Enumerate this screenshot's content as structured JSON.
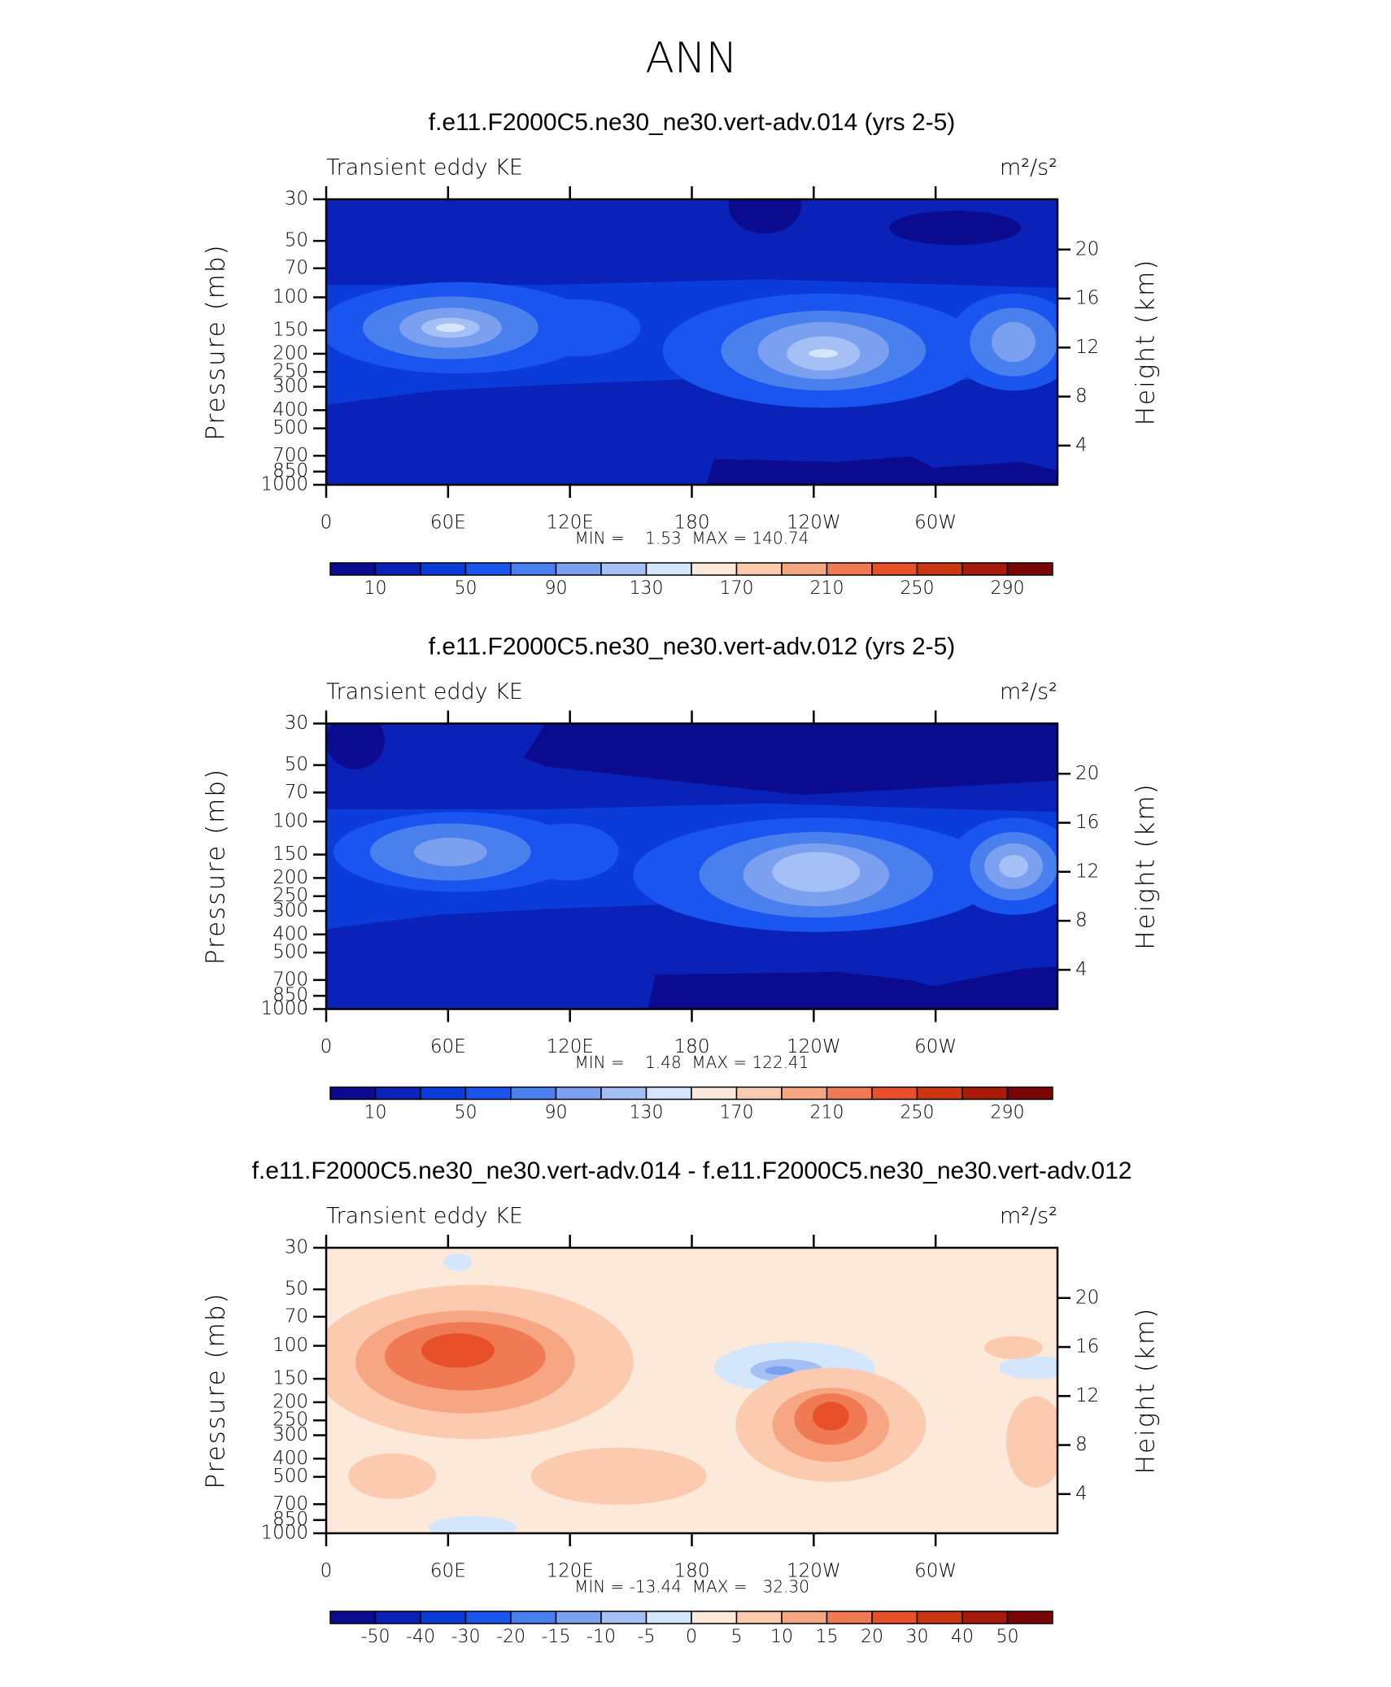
{
  "title": "ANN",
  "chart_data": [
    {
      "type": "contour",
      "title": "f.e11.F2000C5.ne30_ne30.vert-adv.014 (yrs 2-5)",
      "left_label": "Transient eddy KE",
      "units": "m²/s²",
      "ylabel": "Pressure (mb)",
      "y2label": "Height (km)",
      "ylim": [
        1000,
        30
      ],
      "y_log": true,
      "yticks": [
        30,
        50,
        70,
        100,
        150,
        200,
        250,
        300,
        400,
        500,
        700,
        850,
        1000
      ],
      "y2lim": [
        0.8,
        24.1
      ],
      "y2ticks": [
        4,
        8,
        12,
        16,
        20
      ],
      "xlim": [
        0,
        360
      ],
      "xticks": [
        0,
        {
          "value": 60,
          "label": "60E"
        },
        {
          "value": 120,
          "label": "120E"
        },
        180,
        {
          "value": 240,
          "label": "120W"
        },
        {
          "value": 300,
          "label": "60W"
        }
      ],
      "stats": "MIN =    1.53  MAX = 140.74",
      "levels": [
        10,
        30,
        50,
        70,
        90,
        110,
        130,
        150,
        170,
        190,
        210,
        230,
        250,
        270,
        290
      ],
      "colorbar_ticks": [
        10,
        50,
        90,
        130,
        170,
        210,
        250,
        290
      ],
      "colors": [
        "#0b0b8f",
        "#0a22b8",
        "#0b3bd8",
        "#1a55f0",
        "#4a7fee",
        "#7aa0ef",
        "#a4c0f4",
        "#d4e6fb",
        "#fde9d9",
        "#fccaae",
        "#f7a684",
        "#f07a54",
        "#e8502a",
        "#cc3512",
        "#a71a0a",
        "#7a0505"
      ]
    },
    {
      "type": "contour",
      "title": "f.e11.F2000C5.ne30_ne30.vert-adv.012 (yrs 2-5)",
      "left_label": "Transient eddy KE",
      "units": "m²/s²",
      "ylabel": "Pressure (mb)",
      "y2label": "Height (km)",
      "ylim": [
        1000,
        30
      ],
      "y_log": true,
      "yticks": [
        30,
        50,
        70,
        100,
        150,
        200,
        250,
        300,
        400,
        500,
        700,
        850,
        1000
      ],
      "y2lim": [
        0.8,
        24.1
      ],
      "y2ticks": [
        4,
        8,
        12,
        16,
        20
      ],
      "xlim": [
        0,
        360
      ],
      "xticks": [
        0,
        {
          "value": 60,
          "label": "60E"
        },
        {
          "value": 120,
          "label": "120E"
        },
        180,
        {
          "value": 240,
          "label": "120W"
        },
        {
          "value": 300,
          "label": "60W"
        }
      ],
      "stats": "MIN =    1.48  MAX = 122.41",
      "levels": [
        10,
        30,
        50,
        70,
        90,
        110,
        130,
        150,
        170,
        190,
        210,
        230,
        250,
        270,
        290
      ],
      "colorbar_ticks": [
        10,
        50,
        90,
        130,
        170,
        210,
        250,
        290
      ],
      "colors": [
        "#0b0b8f",
        "#0a22b8",
        "#0b3bd8",
        "#1a55f0",
        "#4a7fee",
        "#7aa0ef",
        "#a4c0f4",
        "#d4e6fb",
        "#fde9d9",
        "#fccaae",
        "#f7a684",
        "#f07a54",
        "#e8502a",
        "#cc3512",
        "#a71a0a",
        "#7a0505"
      ]
    },
    {
      "type": "contour",
      "title": "f.e11.F2000C5.ne30_ne30.vert-adv.014 - f.e11.F2000C5.ne30_ne30.vert-adv.012",
      "left_label": "Transient eddy KE",
      "units": "m²/s²",
      "ylabel": "Pressure (mb)",
      "y2label": "Height (km)",
      "ylim": [
        1000,
        30
      ],
      "y_log": true,
      "yticks": [
        30,
        50,
        70,
        100,
        150,
        200,
        250,
        300,
        400,
        500,
        700,
        850,
        1000
      ],
      "y2lim": [
        0.8,
        24.1
      ],
      "y2ticks": [
        4,
        8,
        12,
        16,
        20
      ],
      "xlim": [
        0,
        360
      ],
      "xticks": [
        0,
        {
          "value": 60,
          "label": "60E"
        },
        {
          "value": 120,
          "label": "120E"
        },
        180,
        {
          "value": 240,
          "label": "120W"
        },
        {
          "value": 300,
          "label": "60W"
        }
      ],
      "stats": "MIN = -13.44  MAX =   32.30",
      "levels": [
        -50,
        -40,
        -30,
        -20,
        -15,
        -10,
        -5,
        0,
        5,
        10,
        15,
        20,
        30,
        40,
        50
      ],
      "colorbar_ticks": [
        -50,
        -40,
        -30,
        -20,
        -15,
        -10,
        -5,
        0,
        5,
        10,
        15,
        20,
        30,
        40,
        50
      ],
      "colors": [
        "#0b0b8f",
        "#0a22b8",
        "#0b3bd8",
        "#1a55f0",
        "#4a7fee",
        "#7aa0ef",
        "#a4c0f4",
        "#d4e6fb",
        "#fde9d9",
        "#fccaae",
        "#f7a684",
        "#f07a54",
        "#e8502a",
        "#cc3512",
        "#a71a0a",
        "#7a0505"
      ]
    }
  ]
}
